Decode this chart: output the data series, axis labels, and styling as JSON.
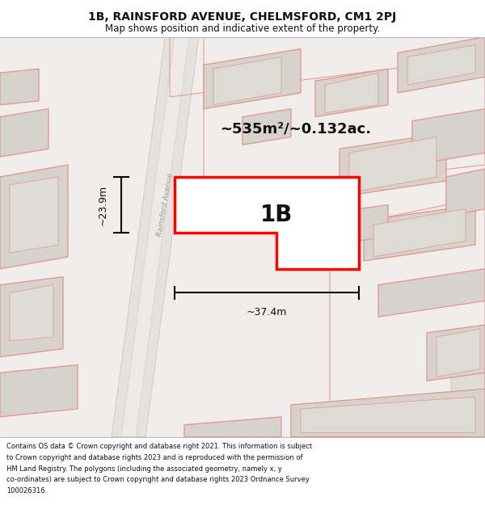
{
  "title_line1": "1B, RAINSFORD AVENUE, CHELMSFORD, CM1 2PJ",
  "title_line2": "Map shows position and indicative extent of the property.",
  "area_label": "~535m²/~0.132ac.",
  "property_label": "1B",
  "dim_width": "~37.4m",
  "dim_height": "~23.9m",
  "street_label": "Rainsford Avenue",
  "footer_line1": "Contains OS data © Crown copyright and database right 2021. This information is subject",
  "footer_line2": "to Crown copyright and database rights 2023 and is reproduced with the permission of",
  "footer_line3": "HM Land Registry. The polygons (including the associated geometry, namely x, y",
  "footer_line4": "co-ordinates) are subject to Crown copyright and database rights 2023 Ordnance Survey",
  "footer_line5": "100026316.",
  "map_bg": "#f0edea",
  "property_poly_color": "#ff0000",
  "building_fill": "#d6d2cc",
  "building_edge": "#e89090",
  "road_fill": "#e8e4df",
  "property_fill": "#ffffff",
  "title_bg": "#ffffff",
  "footer_bg": "#ffffff"
}
